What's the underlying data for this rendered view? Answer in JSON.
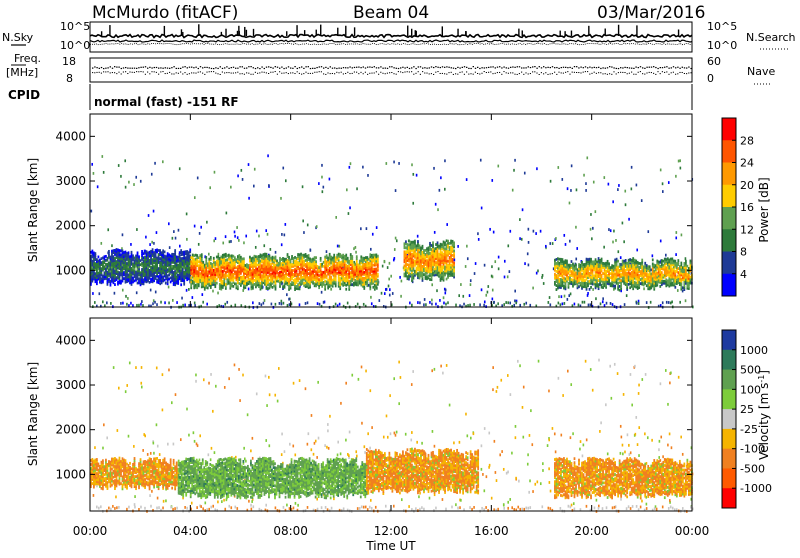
{
  "header": {
    "title": "McMurdo (fitACF)",
    "beam": "Beam 04",
    "date": "03/Mar/2016"
  },
  "noise_panel": {
    "left_label": "N.Sky",
    "right_label": "N.Search",
    "left_ticks": [
      "10^5",
      "10^0"
    ],
    "right_ticks": [
      "10^5",
      "10^0"
    ]
  },
  "freq_panel": {
    "left_label_1": "Freq.",
    "left_label_2": "[MHz]",
    "right_label": "Nave",
    "left_ticks": [
      "18",
      "8"
    ],
    "right_ticks": [
      "60",
      "0"
    ]
  },
  "cpid": {
    "label": "CPID",
    "text": "normal (fast) -151 RF"
  },
  "chart_data": [
    {
      "type": "heatmap",
      "title": "",
      "xlabel": "",
      "ylabel": "Slant Range [km]",
      "xlim": [
        "00:00",
        "24:00"
      ],
      "ylim": [
        180,
        4500
      ],
      "yticks": [
        "4000",
        "3000",
        "2000",
        "1000"
      ],
      "colorbar": {
        "label": "Power [dB]",
        "ticks": [
          "28",
          "24",
          "20",
          "16",
          "12",
          "8",
          "4"
        ],
        "colors": [
          "#ff0000",
          "#ff5500",
          "#ff9900",
          "#ffcc00",
          "#5fa050",
          "#2d7a3a",
          "#1e3a96",
          "#0000ff"
        ]
      },
      "features": [
        {
          "from": "00:00",
          "to": "04:00",
          "range_km": [
            700,
            1500
          ],
          "level_db": 12
        },
        {
          "from": "04:00",
          "to": "11:30",
          "range_km": [
            600,
            1400
          ],
          "level_db": 28
        },
        {
          "from": "12:30",
          "to": "14:30",
          "range_km": [
            800,
            1700
          ],
          "level_db": 26
        },
        {
          "from": "18:30",
          "to": "24:00",
          "range_km": [
            600,
            1300
          ],
          "level_db": 24
        }
      ]
    },
    {
      "type": "heatmap",
      "title": "",
      "xlabel": "Time UT",
      "ylabel": "Slant Range [km]",
      "xlim": [
        "00:00",
        "24:00"
      ],
      "ylim": [
        180,
        4500
      ],
      "yticks": [
        "4000",
        "3000",
        "2000",
        "1000"
      ],
      "xticks": [
        "00:00",
        "04:00",
        "08:00",
        "12:00",
        "16:00",
        "20:00",
        "00:00"
      ],
      "colorbar": {
        "label": "Velocity [m s",
        "label_sup": "-1",
        "label_end": "]",
        "ticks": [
          "1000",
          "500",
          "100",
          "25",
          "-25",
          "-100",
          "-500",
          "-1000"
        ],
        "colors": [
          "#1e3aa0",
          "#2d7a5a",
          "#5fa050",
          "#7dcc3a",
          "#c8c8c8",
          "#f5b400",
          "#f08020",
          "#ff5a00",
          "#ff0000"
        ]
      },
      "features": [
        {
          "from": "00:00",
          "to": "03:30",
          "range_km": [
            700,
            1400
          ],
          "velocity": -100
        },
        {
          "from": "03:30",
          "to": "11:00",
          "range_km": [
            500,
            1400
          ],
          "velocity": 100
        },
        {
          "from": "11:00",
          "to": "15:30",
          "range_km": [
            600,
            1600
          ],
          "velocity": -100
        },
        {
          "from": "18:30",
          "to": "24:00",
          "range_km": [
            500,
            1400
          ],
          "velocity": -100
        }
      ]
    }
  ]
}
